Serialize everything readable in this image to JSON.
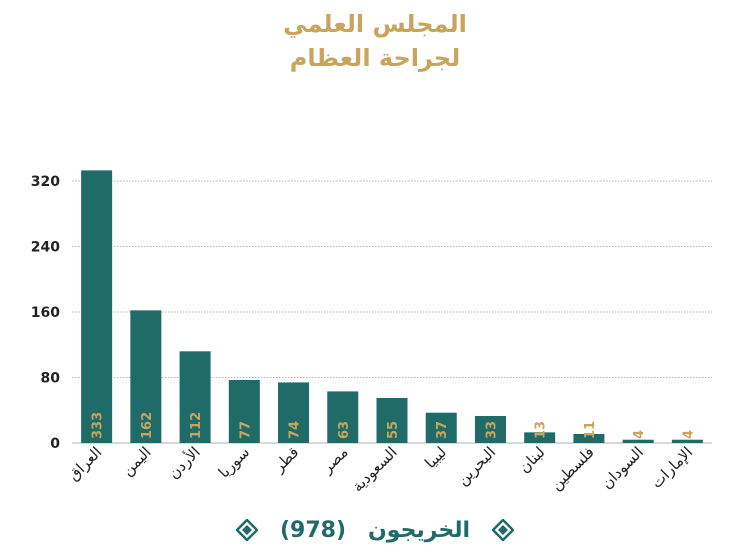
{
  "title_line1": "المجلس العلمي",
  "title_line2": "لجراحة العظام",
  "legend": {
    "label": "الخريجون",
    "total": "(978)",
    "icon": "diamond-icon",
    "color": "#1e6b67"
  },
  "colors": {
    "bar": "#1e6b67",
    "value_label": "#c9a45c",
    "title": "#c9a45c"
  },
  "chart_data": {
    "type": "bar",
    "categories": [
      "العراق",
      "اليمن",
      "الأردن",
      "سوريا",
      "قطر",
      "مصر",
      "السعودية",
      "ليبيا",
      "البحرين",
      "لبنان",
      "فلسطين",
      "السودان",
      "الإمارات"
    ],
    "values": [
      333,
      162,
      112,
      77,
      74,
      63,
      55,
      37,
      33,
      13,
      11,
      4,
      4
    ],
    "data_labels": [
      "333",
      "162",
      "112",
      "77",
      "74",
      "63",
      "55",
      "37",
      "33",
      "13",
      "11",
      "4",
      "4"
    ],
    "yticks": [
      0,
      80,
      160,
      240,
      320
    ],
    "ylim": [
      0,
      340
    ],
    "grid": true,
    "legend_position": "bottom"
  }
}
